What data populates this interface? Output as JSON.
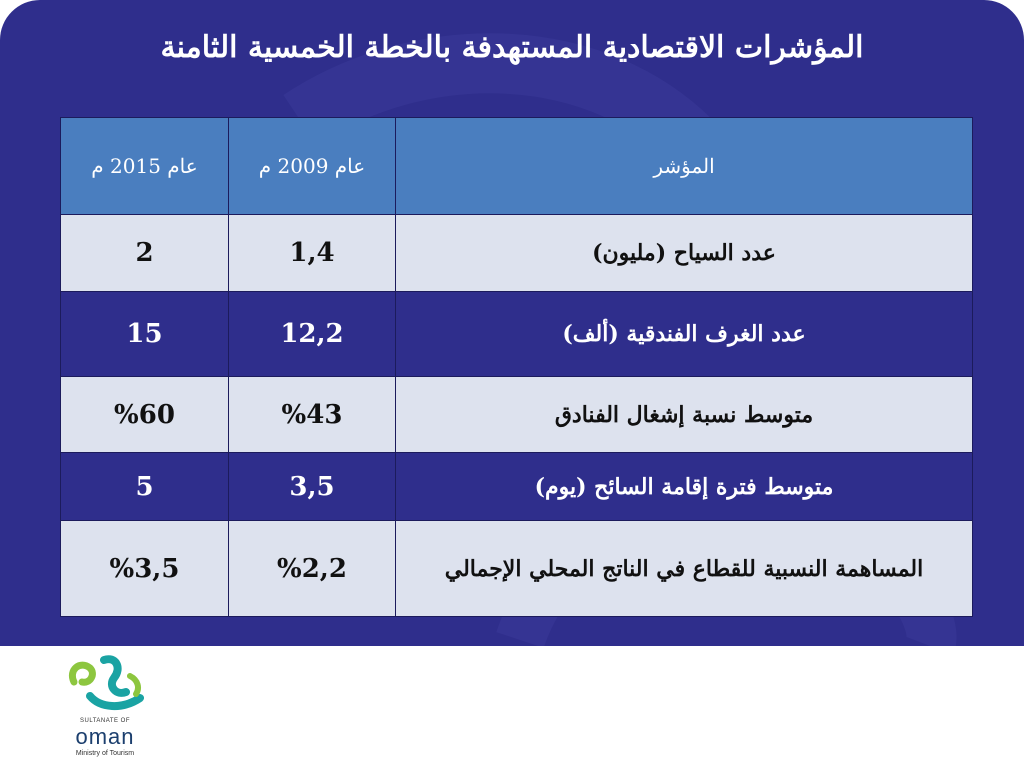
{
  "title": "المؤشرات الاقتصادية المستهدفة بالخطة الخمسية الثامنة",
  "table": {
    "headers": {
      "indicator": "المؤشر",
      "y2009": "عام 2009 م",
      "y2015": "عام 2015 م"
    },
    "rows": [
      {
        "indicator": "عدد السياح (مليون)",
        "y2009": "1,4",
        "y2015": "2"
      },
      {
        "indicator": "عدد الغرف الفندقية (ألف)",
        "y2009": "12,2",
        "y2015": "15"
      },
      {
        "indicator": "متوسط نسبة إشغال الفنادق",
        "y2009": "%43",
        "y2015": "%60"
      },
      {
        "indicator": "متوسط فترة إقامة السائح (يوم)",
        "y2009": "3,5",
        "y2015": "5"
      },
      {
        "indicator": "المساهمة النسبية للقطاع في الناتج المحلي الإجمالي",
        "y2009": "%2,2",
        "y2015": "%3,5"
      }
    ]
  },
  "logo": {
    "top_text": "SULTANATE OF",
    "brand": "oman",
    "bottom_text": "Ministry of Tourism"
  },
  "colors": {
    "panel": "#2f2e8c",
    "header": "#4a7ebf",
    "light_row": "#dde2ee"
  }
}
